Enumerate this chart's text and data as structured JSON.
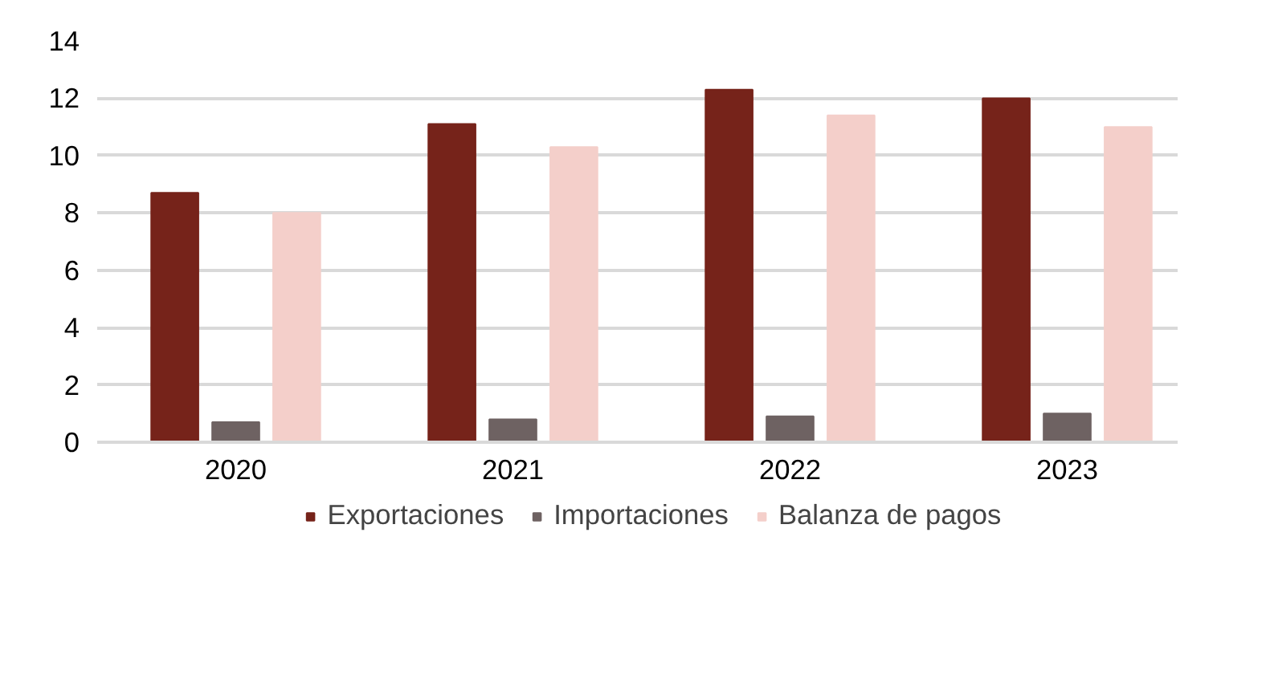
{
  "chart_data": {
    "type": "bar",
    "categories": [
      "2020",
      "2021",
      "2022",
      "2023"
    ],
    "series": [
      {
        "name": "Exportaciones",
        "color": "#76231a",
        "values": [
          8.7,
          11.1,
          12.3,
          12.0
        ]
      },
      {
        "name": "Importaciones",
        "color": "#6e6262",
        "values": [
          0.7,
          0.8,
          0.9,
          1.0
        ]
      },
      {
        "name": "Balanza de pagos",
        "color": "#f4cfca",
        "values": [
          8.0,
          10.3,
          11.4,
          11.0
        ]
      }
    ],
    "ylim": [
      0,
      14
    ],
    "yticks": [
      0,
      2,
      4,
      6,
      8,
      10,
      12,
      14
    ],
    "grid": "y",
    "legend": "bottom"
  }
}
